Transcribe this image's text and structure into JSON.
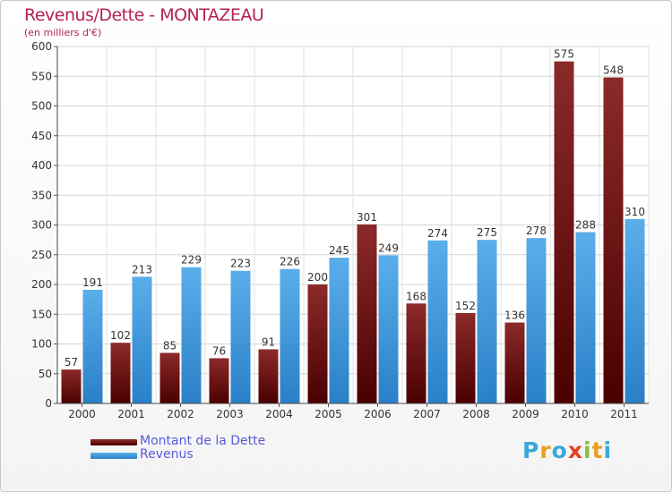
{
  "title": "Revenus/Dette - MONTAZEAU",
  "subtitle": "(en milliers d'€)",
  "logo": {
    "letters": [
      "P",
      "r",
      "o",
      "x",
      "i",
      "t",
      "i"
    ],
    "colors": [
      "#3aa8d8",
      "#e8a020",
      "#3aa8d8",
      "#e84020",
      "#8ac040",
      "#e8a020",
      "#3aa8d8"
    ]
  },
  "chart_data": {
    "type": "bar",
    "categories": [
      "2000",
      "2001",
      "2002",
      "2003",
      "2004",
      "2005",
      "2006",
      "2007",
      "2008",
      "2009",
      "2010",
      "2011"
    ],
    "series": [
      {
        "name": "Montant de la Dette",
        "color": "#7a1414",
        "values": [
          57,
          102,
          85,
          76,
          91,
          200,
          301,
          168,
          152,
          136,
          575,
          548
        ]
      },
      {
        "name": "Revenus",
        "color": "#4aa0e0",
        "values": [
          191,
          213,
          229,
          223,
          226,
          245,
          249,
          274,
          275,
          278,
          288,
          310
        ]
      }
    ],
    "ylim": [
      0,
      600
    ],
    "yticks": [
      0,
      50,
      100,
      150,
      200,
      250,
      300,
      350,
      400,
      450,
      500,
      550,
      600
    ],
    "grid": true,
    "legend_position": "bottom-left"
  }
}
